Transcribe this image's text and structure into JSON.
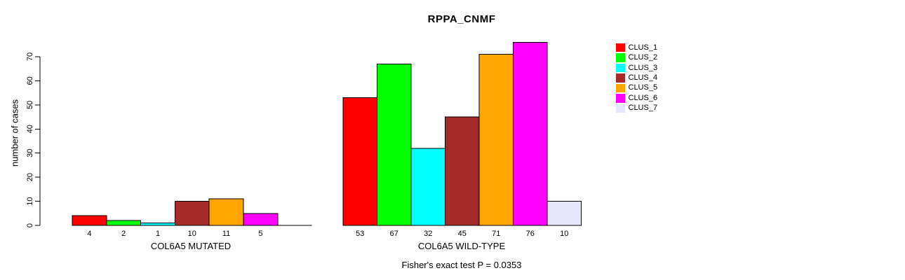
{
  "chart_data": {
    "type": "bar",
    "title": "RPPA_CNMF",
    "ylabel": "number of cases",
    "ylim": [
      0,
      70
    ],
    "yticks": [
      0,
      10,
      20,
      30,
      40,
      50,
      60,
      70
    ],
    "grid": false,
    "legend_position": "right",
    "clusters": [
      "CLUS_1",
      "CLUS_2",
      "CLUS_3",
      "CLUS_4",
      "CLUS_5",
      "CLUS_6",
      "CLUS_7"
    ],
    "colors": [
      "#ff0000",
      "#00ff00",
      "#00ffff",
      "#a52a2a",
      "#ffa500",
      "#ff00ff",
      "#e6e6fa"
    ],
    "groups": [
      {
        "label": "COL6A5 MUTATED",
        "values": [
          4,
          2,
          1,
          10,
          11,
          5,
          0
        ],
        "bar_labels": [
          "4",
          "2",
          "1",
          "10",
          "11",
          "5",
          ""
        ]
      },
      {
        "label": "COL6A5 WILD-TYPE",
        "values": [
          53,
          67,
          32,
          45,
          71,
          76,
          10
        ],
        "bar_labels": [
          "53",
          "67",
          "32",
          "45",
          "71",
          "76",
          "10"
        ]
      }
    ],
    "annotation": "Fisher's exact test P = 0.0353"
  }
}
